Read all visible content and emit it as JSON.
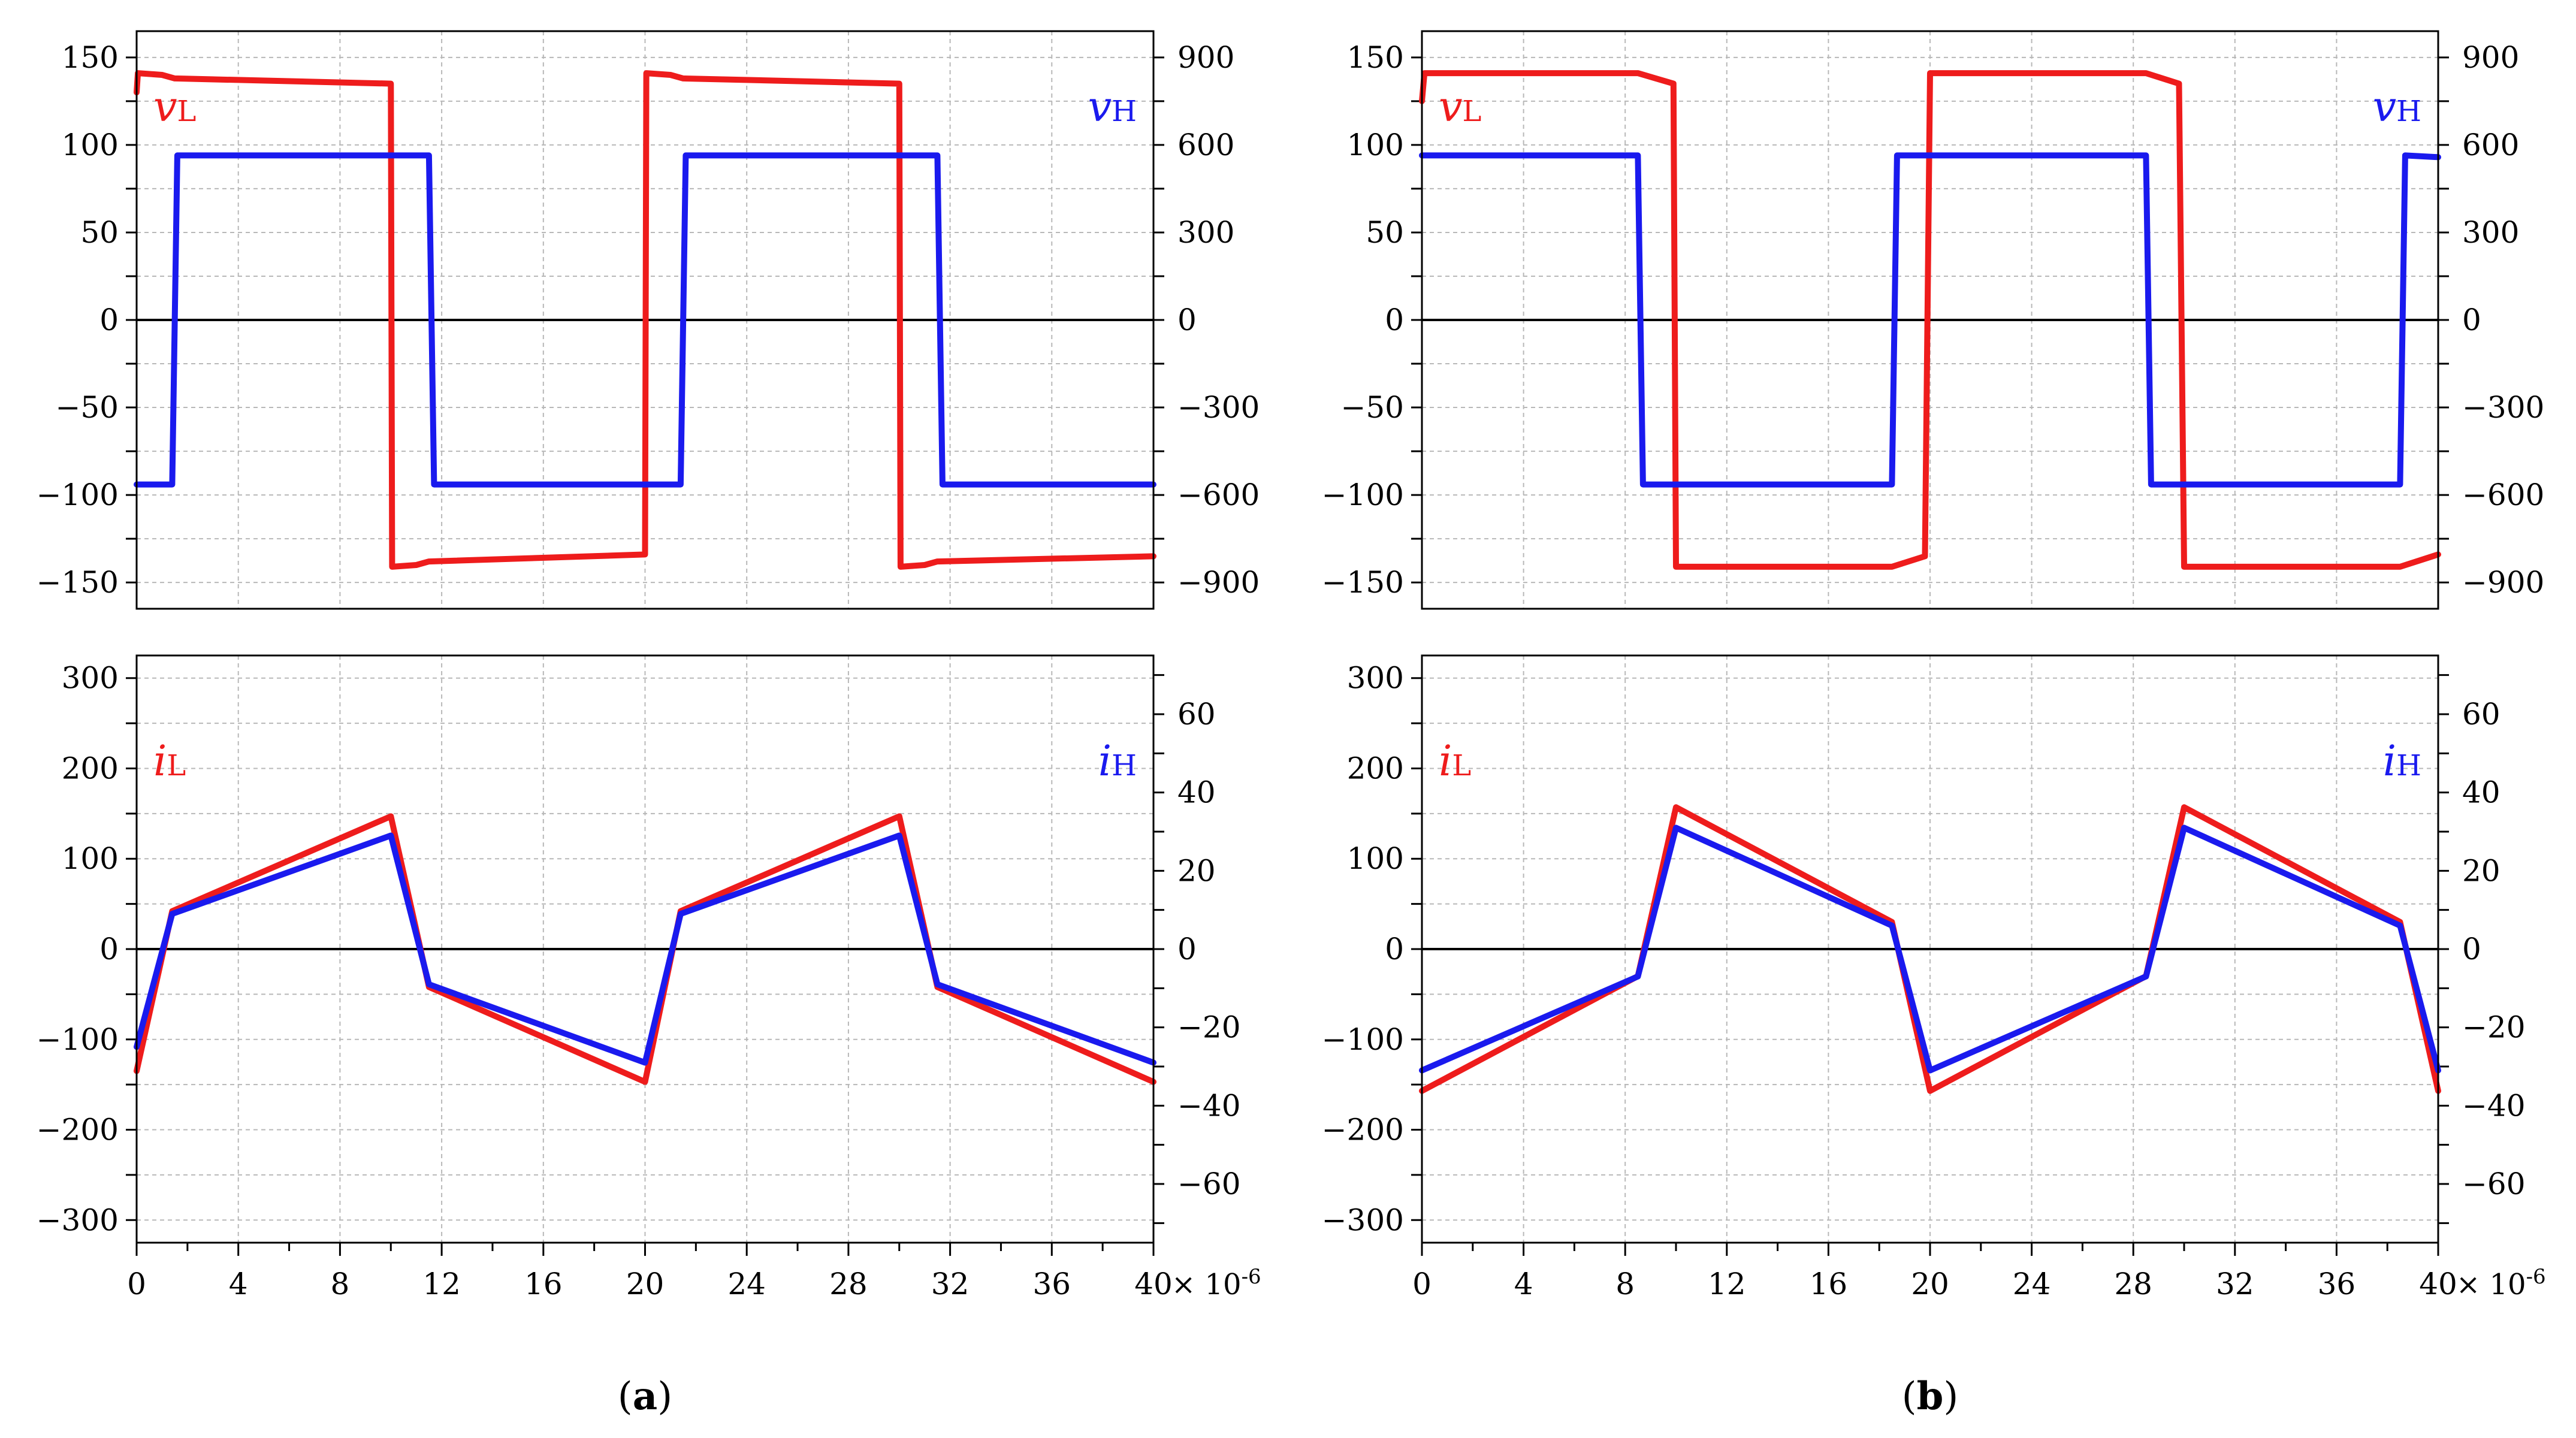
{
  "colors": {
    "red": "#ee1c1c",
    "blue": "#1a1aee",
    "axis": "#000000",
    "grid": "#b8b8b8"
  },
  "x_ticks": [
    0,
    4,
    8,
    12,
    16,
    20,
    24,
    28,
    32,
    36,
    40
  ],
  "x_unit_text": "× 10",
  "x_unit_exp": "-6",
  "panels": [
    {
      "id": "a",
      "caption": "a"
    },
    {
      "id": "b",
      "caption": "b"
    }
  ],
  "chart_data": [
    {
      "type": "line",
      "panel": "a",
      "position": "top",
      "title": "",
      "xlim": [
        0,
        40
      ],
      "x_scale": "1e-6",
      "left_axis": {
        "ylim": [
          -165,
          165
        ],
        "ticks": [
          -150,
          -100,
          -50,
          0,
          50,
          100,
          150
        ]
      },
      "right_axis": {
        "ylim": [
          -990,
          990
        ],
        "ticks": [
          -900,
          -600,
          -300,
          0,
          300,
          600,
          900
        ]
      },
      "legend": {
        "left": {
          "symbol": "v",
          "sub": "L",
          "color": "#ee1c1c"
        },
        "right": {
          "symbol": "v",
          "sub": "H",
          "color": "#1a1aee"
        }
      },
      "series": [
        {
          "name": "vL",
          "axis": "left",
          "color": "#ee1c1c",
          "x": [
            0,
            0.05,
            1,
            1.5,
            10,
            10.05,
            11,
            11.5,
            20,
            20.05,
            21,
            21.5,
            30,
            30.05,
            31,
            31.5,
            40
          ],
          "y": [
            130,
            141,
            140,
            138,
            135,
            -141,
            -140,
            -138,
            -134,
            141,
            140,
            138,
            135,
            -141,
            -140,
            -138,
            -135
          ]
        },
        {
          "name": "vH",
          "axis": "right",
          "color": "#1a1aee",
          "x": [
            0,
            1.4,
            1.6,
            11.5,
            11.7,
            21.4,
            21.6,
            31.5,
            31.7,
            40
          ],
          "y": [
            -564,
            -564,
            564,
            564,
            -564,
            -564,
            564,
            564,
            -564,
            -564
          ]
        }
      ]
    },
    {
      "type": "line",
      "panel": "a",
      "position": "bottom",
      "title": "",
      "xlim": [
        0,
        40
      ],
      "x_scale": "1e-6",
      "left_axis": {
        "ylim": [
          -325,
          325
        ],
        "ticks": [
          -300,
          -200,
          -100,
          0,
          100,
          200,
          300
        ]
      },
      "right_axis": {
        "ylim": [
          -75,
          75
        ],
        "ticks": [
          -60,
          -40,
          -20,
          0,
          20,
          40,
          60
        ]
      },
      "legend": {
        "left": {
          "symbol": "i",
          "sub": "L",
          "color": "#ee1c1c"
        },
        "right": {
          "symbol": "i",
          "sub": "H",
          "color": "#1a1aee"
        }
      },
      "series": [
        {
          "name": "iL",
          "axis": "left",
          "color": "#ee1c1c",
          "x": [
            0,
            1.4,
            10,
            11.5,
            20,
            21.4,
            30,
            31.5,
            40
          ],
          "y": [
            -135,
            42,
            147,
            -42,
            -147,
            42,
            147,
            -42,
            -147
          ]
        },
        {
          "name": "iH",
          "axis": "right",
          "color": "#1a1aee",
          "x": [
            0,
            1.4,
            10,
            11.5,
            20,
            21.4,
            30,
            31.5,
            40
          ],
          "y": [
            -25,
            9,
            29,
            -9,
            -29,
            9,
            29,
            -9,
            -29
          ]
        }
      ]
    },
    {
      "type": "line",
      "panel": "b",
      "position": "top",
      "title": "",
      "xlim": [
        0,
        40
      ],
      "x_scale": "1e-6",
      "left_axis": {
        "ylim": [
          -165,
          165
        ],
        "ticks": [
          -150,
          -100,
          -50,
          0,
          50,
          100,
          150
        ]
      },
      "right_axis": {
        "ylim": [
          -990,
          990
        ],
        "ticks": [
          -900,
          -600,
          -300,
          0,
          300,
          600,
          900
        ]
      },
      "legend": {
        "left": {
          "symbol": "v",
          "sub": "L",
          "color": "#ee1c1c"
        },
        "right": {
          "symbol": "v",
          "sub": "H",
          "color": "#1a1aee"
        }
      },
      "series": [
        {
          "name": "vL",
          "axis": "left",
          "color": "#ee1c1c",
          "x": [
            0,
            0.1,
            8.5,
            9.9,
            10,
            18.5,
            19.8,
            20,
            28.5,
            29.8,
            30,
            38.5,
            40
          ],
          "y": [
            125,
            141,
            141,
            135,
            -141,
            -141,
            -135,
            141,
            141,
            135,
            -141,
            -141,
            -134
          ]
        },
        {
          "name": "vH",
          "axis": "right",
          "color": "#1a1aee",
          "x": [
            0,
            8.5,
            8.7,
            18.5,
            18.7,
            28.5,
            28.7,
            38.5,
            38.7,
            40
          ],
          "y": [
            564,
            564,
            -564,
            -564,
            564,
            564,
            -564,
            -564,
            564,
            558
          ]
        }
      ]
    },
    {
      "type": "line",
      "panel": "b",
      "position": "bottom",
      "title": "",
      "xlim": [
        0,
        40
      ],
      "x_scale": "1e-6",
      "left_axis": {
        "ylim": [
          -325,
          325
        ],
        "ticks": [
          -300,
          -200,
          -100,
          0,
          100,
          200,
          300
        ]
      },
      "right_axis": {
        "ylim": [
          -75,
          75
        ],
        "ticks": [
          -60,
          -40,
          -20,
          0,
          20,
          40,
          60
        ]
      },
      "legend": {
        "left": {
          "symbol": "i",
          "sub": "L",
          "color": "#ee1c1c"
        },
        "right": {
          "symbol": "i",
          "sub": "H",
          "color": "#1a1aee"
        }
      },
      "series": [
        {
          "name": "iL",
          "axis": "left",
          "color": "#ee1c1c",
          "x": [
            0,
            8.5,
            10,
            18.5,
            20,
            28.5,
            30,
            38.5,
            40
          ],
          "y": [
            -157,
            -30,
            157,
            30,
            -157,
            -30,
            157,
            30,
            -157
          ]
        },
        {
          "name": "iH",
          "axis": "right",
          "color": "#1a1aee",
          "x": [
            0,
            8.5,
            10,
            18.5,
            20,
            28.5,
            30,
            38.5,
            40
          ],
          "y": [
            -31,
            -7,
            31,
            6,
            -31,
            -7,
            31,
            6,
            -31
          ]
        }
      ]
    }
  ]
}
